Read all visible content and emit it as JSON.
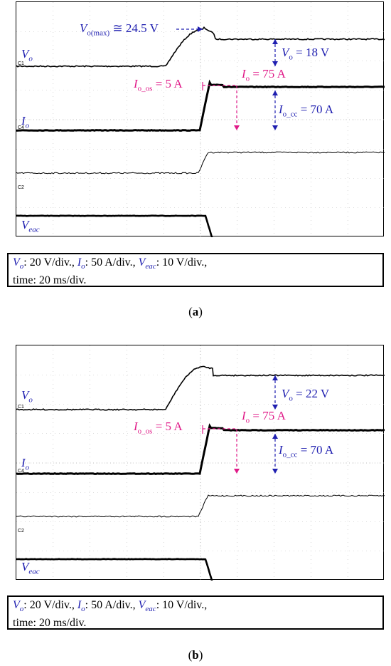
{
  "panels": [
    {
      "label_letter": "a",
      "traces": {
        "Vo": {
          "name": "V",
          "sub": "o",
          "rise_start_level": 0.28,
          "peak": 24.5,
          "final_level": 0.86
        },
        "Io": {
          "name": "I",
          "sub": "o"
        },
        "Veac": {
          "name": "V",
          "sub": "eac"
        }
      },
      "annotations": {
        "vo_max_text": "V",
        "vo_max_sub": "o(max)",
        "vo_max_val": " ≅ 24.5 V",
        "vo_step_sym": "V",
        "vo_step_sub": "o",
        "vo_step_val": " = 18 V",
        "io_text": "I",
        "io_sub": "o",
        "io_val": " = 75 A",
        "ioos_text": "I",
        "ioos_sub": "o_os",
        "ioos_val": " = 5 A",
        "iocc_text": "I",
        "iocc_sub": "o_cc",
        "iocc_val": " = 70 A"
      }
    },
    {
      "label_letter": "b",
      "traces": {
        "Vo": {
          "name": "V",
          "sub": "o"
        },
        "Io": {
          "name": "I",
          "sub": "o"
        },
        "Veac": {
          "name": "V",
          "sub": "eac"
        }
      },
      "annotations": {
        "vo_step_sym": "V",
        "vo_step_sub": "o",
        "vo_step_val": " = 22 V",
        "io_text": "I",
        "io_sub": "o",
        "io_val": " = 75 A",
        "ioos_text": "I",
        "ioos_sub": "o_os",
        "ioos_val": " = 5 A",
        "iocc_text": "I",
        "iocc_sub": "o_cc",
        "iocc_val": " = 70 A"
      }
    }
  ],
  "caption": {
    "vo": "V",
    "vo_sub": "o",
    "vo_scale": ": 20 V/div., ",
    "io": "I",
    "io_sub": "o",
    "io_scale": ": 50 A/div., ",
    "veac": "V",
    "veac_sub": "eac",
    "veac_scale": ": 10 V/div.,",
    "time": "time: 20 ms/div."
  },
  "channel_markers": [
    "C1",
    "C4",
    "C2",
    "C3"
  ],
  "colors": {
    "blue": "#1f1fb0",
    "pink": "#e01a88",
    "trace": "#000000"
  },
  "chart_data": [
    {
      "type": "line",
      "title": "",
      "xlabel": "time: 20 ms/div.",
      "ylabel": "",
      "series": [
        {
          "name": "Vo",
          "x": [
            0,
            4.2,
            5.0,
            5.3,
            10
          ],
          "y": [
            0,
            0,
            24.5,
            18,
            18
          ],
          "units": "V"
        },
        {
          "name": "Io",
          "x": [
            0,
            5.0,
            5.3,
            10
          ],
          "y": [
            0,
            0,
            75,
            70
          ],
          "units": "A"
        },
        {
          "name": "Veac",
          "x": [
            0,
            5.2,
            5.4,
            10
          ],
          "y": [
            0,
            0,
            -10,
            -10
          ],
          "units": "V"
        }
      ]
    },
    {
      "type": "line",
      "title": "",
      "xlabel": "time: 20 ms/div.",
      "ylabel": "",
      "series": [
        {
          "name": "Vo",
          "x": [
            0,
            4.2,
            5.3,
            10
          ],
          "y": [
            0,
            0,
            22,
            22
          ],
          "units": "V"
        },
        {
          "name": "Io",
          "x": [
            0,
            5.0,
            5.3,
            10
          ],
          "y": [
            0,
            0,
            75,
            70
          ],
          "units": "A"
        },
        {
          "name": "Veac",
          "x": [
            0,
            5.2,
            5.4,
            10
          ],
          "y": [
            0,
            0,
            -10,
            -10
          ],
          "units": "V"
        }
      ]
    }
  ]
}
